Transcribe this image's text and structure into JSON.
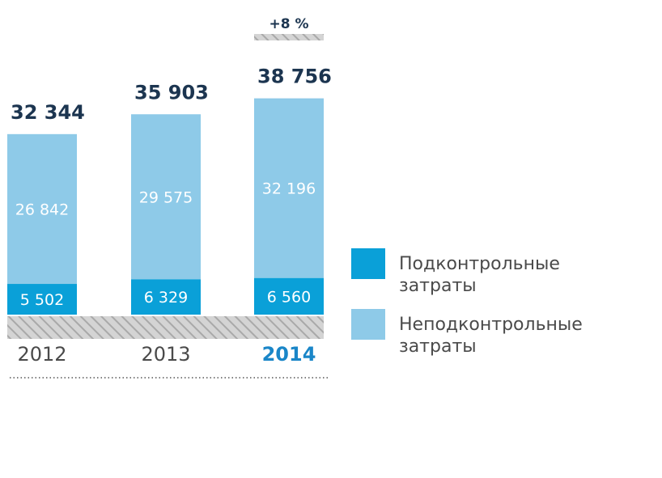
{
  "chart_data": {
    "type": "bar",
    "stacked": true,
    "categories": [
      "2012",
      "2013",
      "2014"
    ],
    "highlight_category": "2014",
    "series": [
      {
        "name": "Подконтрольные затраты",
        "values": [
          5502,
          6329,
          6560
        ],
        "labels": [
          "5 502",
          "6 329",
          "6 560"
        ],
        "color": "#0aa0d8"
      },
      {
        "name": "Неподконтрольные затраты",
        "values": [
          26842,
          29575,
          32196
        ],
        "labels": [
          "26 842",
          "29 575",
          "32 196"
        ],
        "color": "#8ecae8"
      }
    ],
    "totals": [
      32344,
      35903,
      38756
    ],
    "total_labels": [
      "32 344",
      "35 903",
      "38 756"
    ],
    "growth_annotation": "+8 %",
    "legend": {
      "position": "right",
      "items": [
        {
          "lines": [
            "Подконтрольные",
            "затраты"
          ],
          "color": "#0aa0d8"
        },
        {
          "lines": [
            "Неподконтрольные",
            "затраты"
          ],
          "color": "#8ecae8"
        }
      ]
    },
    "grid": false,
    "title": "",
    "xlabel": "",
    "ylabel": "",
    "ylim": [
      0,
      38756
    ]
  }
}
